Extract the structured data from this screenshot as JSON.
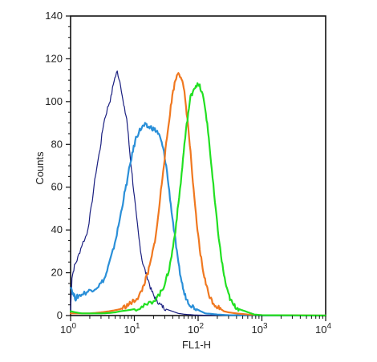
{
  "chart_data": {
    "type": "line",
    "xlabel": "FL1-H",
    "ylabel": "Counts",
    "x_scale": "log",
    "xlim": [
      1,
      10000
    ],
    "ylim": [
      0,
      140
    ],
    "x_ticks": [
      {
        "value": 1,
        "base": "10",
        "exp": "0"
      },
      {
        "value": 10,
        "base": "10",
        "exp": "1"
      },
      {
        "value": 100,
        "base": "10",
        "exp": "2"
      },
      {
        "value": 1000,
        "base": "10",
        "exp": "3"
      },
      {
        "value": 10000,
        "base": "10",
        "exp": "4"
      }
    ],
    "y_ticks": [
      "0",
      "20",
      "40",
      "60",
      "80",
      "100",
      "120",
      "140"
    ],
    "grid": false,
    "legend": "none",
    "series": [
      {
        "color": "#1a1f80",
        "stroke_width": 1.2,
        "x": [
          1,
          1.05,
          1.15,
          1.3,
          1.5,
          1.8,
          2.1,
          2.5,
          2.9,
          3.3,
          3.8,
          4.3,
          4.8,
          5.4,
          6.1,
          6.8,
          7.6,
          8.5,
          9.5,
          10.6,
          11.8,
          13.2,
          14.7,
          16.4,
          18.3,
          20.4,
          22.8,
          25.4,
          28.3,
          31.6,
          35.3,
          39.4,
          44,
          49,
          55,
          61,
          68,
          76,
          85,
          100,
          150,
          300,
          1000,
          10000
        ],
        "y": [
          2,
          18,
          23,
          27,
          33,
          38,
          50,
          67,
          78,
          90,
          97,
          102,
          110,
          114,
          108,
          98,
          92,
          76,
          62,
          48,
          36,
          26,
          21,
          17,
          12,
          9,
          7,
          5,
          4,
          3,
          2.5,
          2,
          1.5,
          1,
          0.8,
          0.6,
          0.5,
          0.4,
          0.3,
          0.2,
          0.1,
          0.1,
          0,
          0
        ]
      },
      {
        "color": "#2a8fd8",
        "stroke_width": 2.2,
        "x": [
          1,
          1.1,
          1.2,
          1.3,
          1.5,
          1.8,
          2.1,
          2.5,
          3,
          3.5,
          4,
          4.6,
          5.3,
          6,
          6.8,
          7.6,
          8.5,
          9.5,
          10.6,
          11.8,
          13.2,
          14.7,
          16.4,
          18.3,
          20.4,
          22.8,
          25.4,
          28.3,
          31.6,
          35.3,
          39.4,
          44,
          49,
          55,
          61,
          68,
          76,
          85,
          95,
          110,
          130,
          160,
          200,
          300,
          1000,
          10000
        ],
        "y": [
          14,
          10,
          8,
          9,
          10,
          11,
          12,
          13,
          15,
          18,
          24,
          30,
          38,
          46,
          55,
          62,
          70,
          77,
          83,
          86,
          88,
          89,
          88,
          88,
          87,
          86,
          83,
          78,
          70,
          58,
          46,
          35,
          24,
          16,
          10,
          7,
          5,
          4,
          3,
          2,
          1,
          0.8,
          0.5,
          0.2,
          0,
          0
        ]
      },
      {
        "color": "#f07820",
        "stroke_width": 2.2,
        "x": [
          1,
          1.5,
          2,
          3,
          4,
          5,
          6,
          7,
          8,
          9,
          10,
          11.8,
          13.2,
          14.7,
          16.4,
          18.3,
          20.4,
          22.8,
          25.4,
          28.3,
          31.6,
          35.3,
          39.4,
          44,
          49,
          55,
          61,
          68,
          76,
          85,
          95,
          106,
          118,
          132,
          147,
          164,
          183,
          204,
          228,
          254,
          300,
          400,
          600,
          1000,
          10000
        ],
        "y": [
          1,
          1,
          1,
          1.5,
          2,
          2.5,
          3,
          4,
          5,
          6,
          7,
          9,
          12,
          16,
          20,
          26,
          33,
          42,
          55,
          68,
          80,
          92,
          103,
          110,
          114,
          111,
          104,
          92,
          76,
          58,
          43,
          31,
          22,
          15,
          10,
          7,
          5,
          4,
          3,
          2,
          1.5,
          1,
          0.5,
          0.2,
          0
        ]
      },
      {
        "color": "#22e022",
        "stroke_width": 2.2,
        "x": [
          1,
          1.2,
          1.5,
          2,
          3,
          4,
          5,
          6,
          8,
          10,
          13,
          16,
          20,
          25,
          28.3,
          31.6,
          35.3,
          39.4,
          44,
          49,
          55,
          61,
          68,
          76,
          85,
          95,
          106,
          118,
          132,
          147,
          164,
          183,
          204,
          228,
          254,
          283,
          316,
          353,
          394,
          440,
          490,
          550,
          610,
          680,
          760,
          1000,
          10000
        ],
        "y": [
          2,
          1.5,
          1,
          1,
          1,
          1.2,
          1.5,
          2,
          2.5,
          3,
          4,
          5,
          7,
          10,
          13,
          17,
          22,
          30,
          40,
          52,
          66,
          80,
          92,
          102,
          106,
          108,
          107,
          103,
          95,
          83,
          68,
          53,
          40,
          28,
          19,
          12,
          8,
          5,
          4,
          3,
          2.5,
          2,
          1.5,
          1,
          0.5,
          0.2,
          0
        ]
      }
    ]
  }
}
